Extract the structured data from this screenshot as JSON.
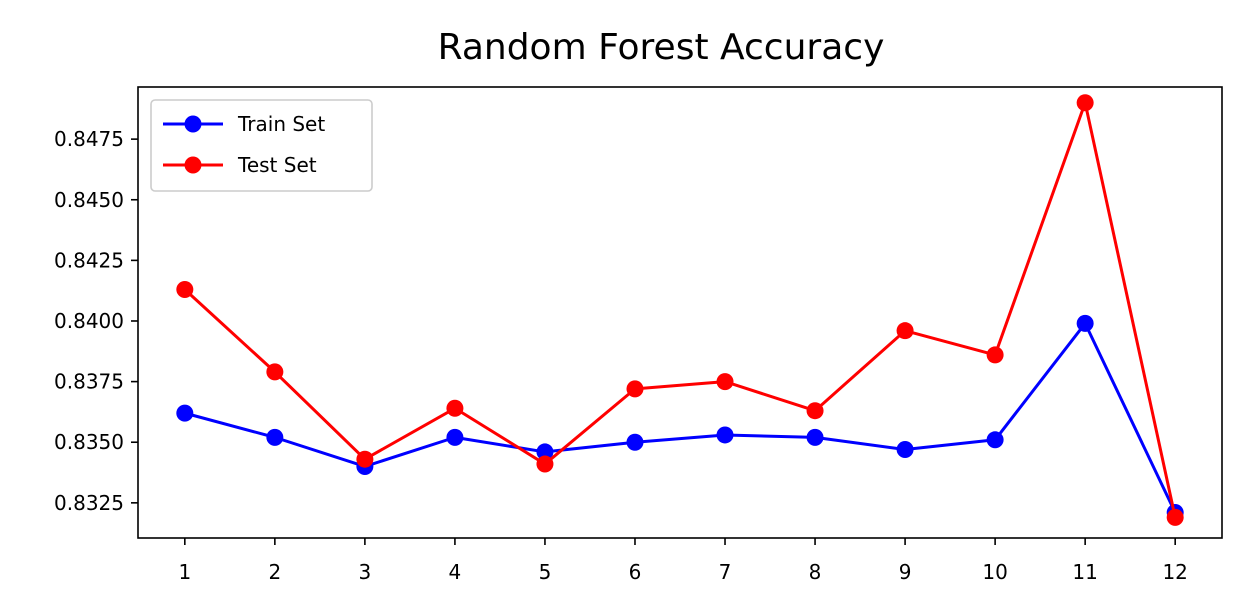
{
  "chart_data": {
    "type": "line",
    "title": "Random Forest Accuracy",
    "xlabel": "",
    "ylabel": "",
    "categories": [
      1,
      2,
      3,
      4,
      5,
      6,
      7,
      8,
      9,
      10,
      11,
      12
    ],
    "x_ticks": [
      "1",
      "2",
      "3",
      "4",
      "5",
      "6",
      "7",
      "8",
      "9",
      "10",
      "11",
      "12"
    ],
    "y_ticks": [
      0.8325,
      0.835,
      0.8375,
      0.84,
      0.8425,
      0.845,
      0.8475
    ],
    "y_tick_labels": [
      "0.8325",
      "0.8350",
      "0.8375",
      "0.8400",
      "0.8425",
      "0.8450",
      "0.8475"
    ],
    "xlim": [
      0.48,
      12.52
    ],
    "ylim": [
      0.83105,
      0.84965
    ],
    "grid": false,
    "legend_position": "upper left",
    "series": [
      {
        "name": "Train Set",
        "color": "#0000ff",
        "marker": "circle",
        "values": [
          0.8362,
          0.8352,
          0.834,
          0.8352,
          0.8346,
          0.835,
          0.8353,
          0.8352,
          0.8347,
          0.8351,
          0.8399,
          0.8321
        ]
      },
      {
        "name": "Test Set",
        "color": "#ff0000",
        "marker": "circle",
        "values": [
          0.8413,
          0.8379,
          0.8343,
          0.8364,
          0.8341,
          0.8372,
          0.8375,
          0.8363,
          0.8396,
          0.8386,
          0.849,
          0.8319
        ]
      }
    ]
  }
}
